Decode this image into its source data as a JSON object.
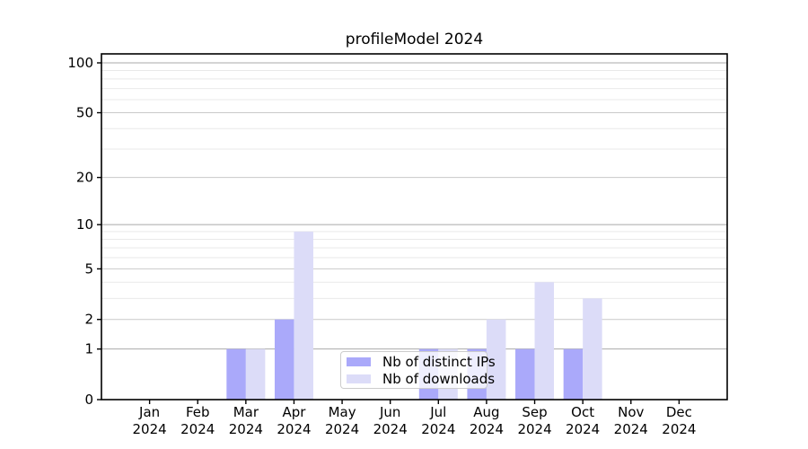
{
  "chart_data": {
    "type": "bar",
    "title": "profileModel 2024",
    "categories": [
      "Jan 2024",
      "Feb 2024",
      "Mar 2024",
      "Apr 2024",
      "May 2024",
      "Jun 2024",
      "Jul 2024",
      "Aug 2024",
      "Sep 2024",
      "Oct 2024",
      "Nov 2024",
      "Dec 2024"
    ],
    "series": [
      {
        "name": "Nb of distinct IPs",
        "color": "#aaa9fa",
        "values": [
          0,
          0,
          1,
          2,
          0,
          0,
          1,
          1,
          1,
          1,
          0,
          0
        ]
      },
      {
        "name": "Nb of downloads",
        "color": "#dcdcf8",
        "values": [
          0,
          0,
          1,
          9,
          0,
          0,
          1,
          2,
          4,
          3,
          0,
          0
        ]
      }
    ],
    "y_axis": {
      "scale": "log1p",
      "major_ticks": [
        0,
        1,
        2,
        5,
        10,
        20,
        50,
        100
      ],
      "minor_ticks": [
        3,
        4,
        6,
        7,
        8,
        9,
        30,
        40,
        60,
        70,
        80,
        90
      ]
    },
    "legend": {
      "position": "lower center"
    },
    "grid": true,
    "colors": {
      "grid_decade": "#a9a9a9",
      "grid_major": "#c9c9c9",
      "grid_minor": "#e9e9e9",
      "axis": "#000000",
      "tick_label": "#000000"
    }
  }
}
